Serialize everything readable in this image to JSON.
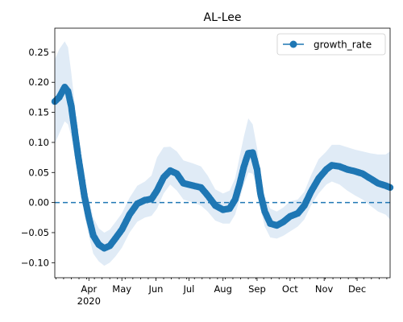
{
  "chart_data": {
    "type": "line",
    "title": "AL-Lee",
    "xlabel": "",
    "ylabel": "",
    "x_range": [
      "2020-03-01",
      "2020-12-31"
    ],
    "ylim": [
      -0.125,
      0.29
    ],
    "x_ticks": [
      {
        "date": "2020-04-01",
        "label": "Apr",
        "sublabel": "2020"
      },
      {
        "date": "2020-05-01",
        "label": "May"
      },
      {
        "date": "2020-06-01",
        "label": "Jun"
      },
      {
        "date": "2020-07-01",
        "label": "Jul"
      },
      {
        "date": "2020-08-01",
        "label": "Aug"
      },
      {
        "date": "2020-09-01",
        "label": "Sep"
      },
      {
        "date": "2020-10-01",
        "label": "Oct"
      },
      {
        "date": "2020-11-01",
        "label": "Nov"
      },
      {
        "date": "2020-12-01",
        "label": "Dec"
      }
    ],
    "y_ticks": [
      {
        "value": -0.1,
        "label": "−0.10"
      },
      {
        "value": -0.05,
        "label": "−0.05"
      },
      {
        "value": 0.0,
        "label": "0.00"
      },
      {
        "value": 0.05,
        "label": "0.05"
      },
      {
        "value": 0.1,
        "label": "0.10"
      },
      {
        "value": 0.15,
        "label": "0.15"
      },
      {
        "value": 0.2,
        "label": "0.20"
      },
      {
        "value": 0.25,
        "label": "0.25"
      }
    ],
    "reference_line": {
      "y": 0.0,
      "style": "dashed"
    },
    "legend": {
      "placement": "top-right"
    },
    "series": [
      {
        "name": "growth_rate",
        "color": "#1f77b4",
        "band_color": "#dbe8f5",
        "points": [
          {
            "x": "2020-03-01",
            "y": 0.168,
            "lo": 0.098,
            "hi": 0.238
          },
          {
            "x": "2020-03-05",
            "y": 0.175,
            "lo": 0.115,
            "hi": 0.255
          },
          {
            "x": "2020-03-10",
            "y": 0.192,
            "lo": 0.135,
            "hi": 0.268
          },
          {
            "x": "2020-03-13",
            "y": 0.185,
            "lo": 0.13,
            "hi": 0.258
          },
          {
            "x": "2020-03-16",
            "y": 0.16,
            "lo": 0.11,
            "hi": 0.215
          },
          {
            "x": "2020-03-19",
            "y": 0.12,
            "lo": 0.078,
            "hi": 0.165
          },
          {
            "x": "2020-03-22",
            "y": 0.08,
            "lo": 0.045,
            "hi": 0.118
          },
          {
            "x": "2020-03-25",
            "y": 0.045,
            "lo": 0.015,
            "hi": 0.078
          },
          {
            "x": "2020-03-28",
            "y": 0.01,
            "lo": -0.02,
            "hi": 0.04
          },
          {
            "x": "2020-04-01",
            "y": -0.025,
            "lo": -0.055,
            "hi": 0.005
          },
          {
            "x": "2020-04-05",
            "y": -0.055,
            "lo": -0.085,
            "hi": -0.025
          },
          {
            "x": "2020-04-10",
            "y": -0.07,
            "lo": -0.098,
            "hi": -0.043
          },
          {
            "x": "2020-04-15",
            "y": -0.076,
            "lo": -0.105,
            "hi": -0.05
          },
          {
            "x": "2020-04-20",
            "y": -0.072,
            "lo": -0.1,
            "hi": -0.045
          },
          {
            "x": "2020-04-25",
            "y": -0.06,
            "lo": -0.09,
            "hi": -0.033
          },
          {
            "x": "2020-05-01",
            "y": -0.045,
            "lo": -0.075,
            "hi": -0.018
          },
          {
            "x": "2020-05-08",
            "y": -0.02,
            "lo": -0.05,
            "hi": 0.008
          },
          {
            "x": "2020-05-15",
            "y": -0.002,
            "lo": -0.032,
            "hi": 0.028
          },
          {
            "x": "2020-05-22",
            "y": 0.004,
            "lo": -0.025,
            "hi": 0.035
          },
          {
            "x": "2020-05-28",
            "y": 0.006,
            "lo": -0.022,
            "hi": 0.045
          },
          {
            "x": "2020-06-02",
            "y": 0.02,
            "lo": -0.01,
            "hi": 0.075
          },
          {
            "x": "2020-06-08",
            "y": 0.042,
            "lo": 0.015,
            "hi": 0.092
          },
          {
            "x": "2020-06-14",
            "y": 0.053,
            "lo": 0.03,
            "hi": 0.093
          },
          {
            "x": "2020-06-20",
            "y": 0.048,
            "lo": 0.02,
            "hi": 0.085
          },
          {
            "x": "2020-06-26",
            "y": 0.032,
            "lo": 0.005,
            "hi": 0.07
          },
          {
            "x": "2020-07-05",
            "y": 0.028,
            "lo": 0.0,
            "hi": 0.065
          },
          {
            "x": "2020-07-12",
            "y": 0.025,
            "lo": -0.005,
            "hi": 0.06
          },
          {
            "x": "2020-07-18",
            "y": 0.012,
            "lo": -0.015,
            "hi": 0.045
          },
          {
            "x": "2020-07-25",
            "y": -0.005,
            "lo": -0.03,
            "hi": 0.022
          },
          {
            "x": "2020-08-01",
            "y": -0.012,
            "lo": -0.035,
            "hi": 0.015
          },
          {
            "x": "2020-08-07",
            "y": -0.01,
            "lo": -0.035,
            "hi": 0.02
          },
          {
            "x": "2020-08-12",
            "y": 0.005,
            "lo": -0.02,
            "hi": 0.04
          },
          {
            "x": "2020-08-16",
            "y": 0.03,
            "lo": 0.005,
            "hi": 0.075
          },
          {
            "x": "2020-08-20",
            "y": 0.06,
            "lo": 0.03,
            "hi": 0.11
          },
          {
            "x": "2020-08-24",
            "y": 0.082,
            "lo": 0.05,
            "hi": 0.14
          },
          {
            "x": "2020-08-28",
            "y": 0.083,
            "lo": 0.048,
            "hi": 0.13
          },
          {
            "x": "2020-09-01",
            "y": 0.055,
            "lo": 0.025,
            "hi": 0.09
          },
          {
            "x": "2020-09-04",
            "y": 0.015,
            "lo": -0.01,
            "hi": 0.05
          },
          {
            "x": "2020-09-08",
            "y": -0.015,
            "lo": -0.04,
            "hi": 0.01
          },
          {
            "x": "2020-09-13",
            "y": -0.035,
            "lo": -0.058,
            "hi": -0.01
          },
          {
            "x": "2020-09-19",
            "y": -0.038,
            "lo": -0.06,
            "hi": -0.015
          },
          {
            "x": "2020-09-25",
            "y": -0.032,
            "lo": -0.055,
            "hi": -0.008
          },
          {
            "x": "2020-10-01",
            "y": -0.023,
            "lo": -0.048,
            "hi": 0.002
          },
          {
            "x": "2020-10-08",
            "y": -0.018,
            "lo": -0.04,
            "hi": 0.005
          },
          {
            "x": "2020-10-14",
            "y": -0.005,
            "lo": -0.028,
            "hi": 0.018
          },
          {
            "x": "2020-10-20",
            "y": 0.018,
            "lo": -0.005,
            "hi": 0.045
          },
          {
            "x": "2020-10-27",
            "y": 0.04,
            "lo": 0.015,
            "hi": 0.072
          },
          {
            "x": "2020-11-03",
            "y": 0.055,
            "lo": 0.03,
            "hi": 0.085
          },
          {
            "x": "2020-11-08",
            "y": 0.062,
            "lo": 0.035,
            "hi": 0.096
          },
          {
            "x": "2020-11-15",
            "y": 0.06,
            "lo": 0.03,
            "hi": 0.096
          },
          {
            "x": "2020-11-22",
            "y": 0.055,
            "lo": 0.02,
            "hi": 0.092
          },
          {
            "x": "2020-11-29",
            "y": 0.052,
            "lo": 0.012,
            "hi": 0.088
          },
          {
            "x": "2020-12-06",
            "y": 0.048,
            "lo": 0.005,
            "hi": 0.085
          },
          {
            "x": "2020-12-13",
            "y": 0.04,
            "lo": -0.005,
            "hi": 0.082
          },
          {
            "x": "2020-12-20",
            "y": 0.032,
            "lo": -0.015,
            "hi": 0.08
          },
          {
            "x": "2020-12-27",
            "y": 0.028,
            "lo": -0.02,
            "hi": 0.08
          },
          {
            "x": "2020-12-31",
            "y": 0.025,
            "lo": -0.028,
            "hi": 0.085
          }
        ]
      }
    ]
  }
}
